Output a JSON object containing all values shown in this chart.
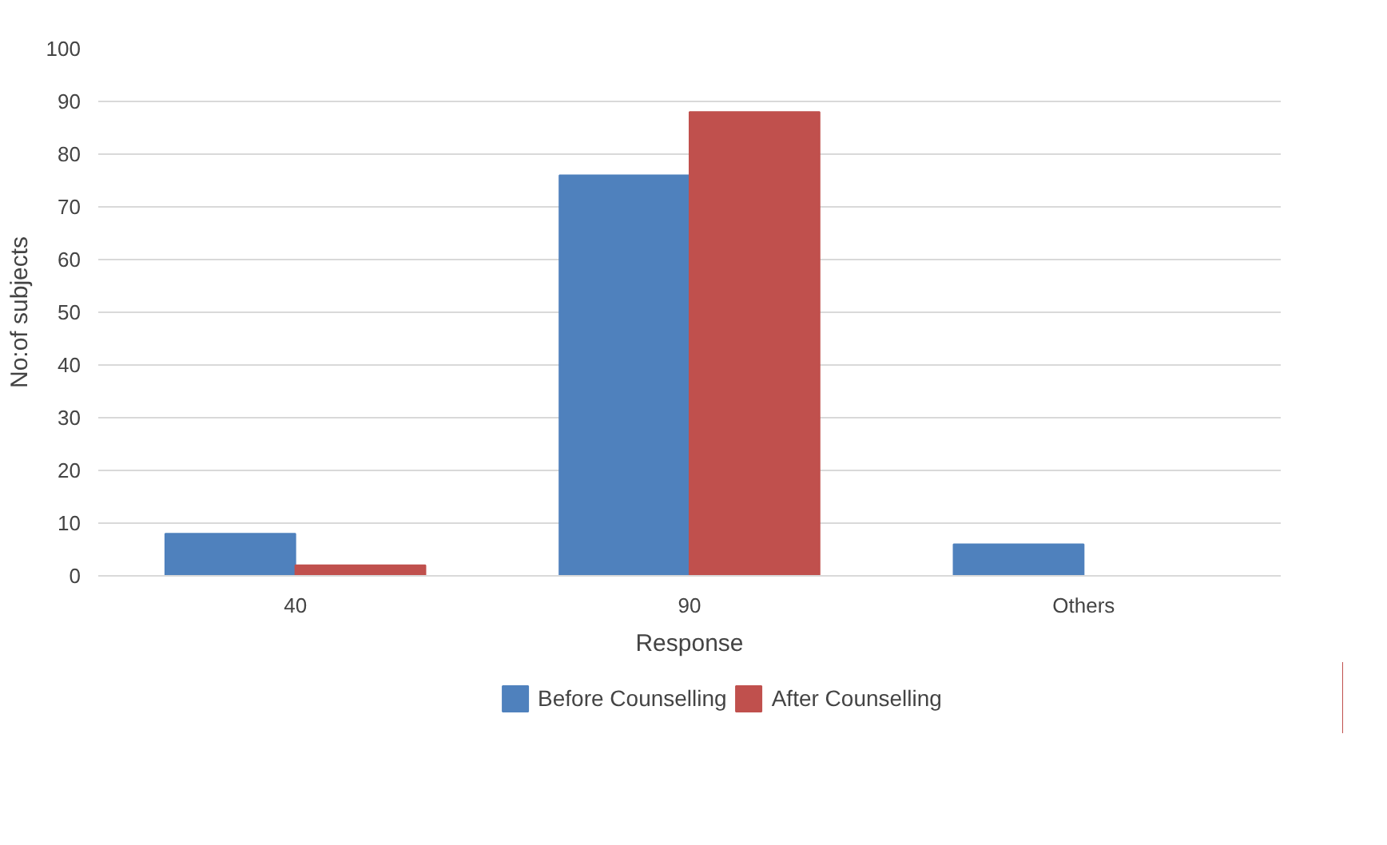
{
  "chart_data": {
    "type": "bar",
    "xlabel": "Response",
    "ylabel": "No:of subjects",
    "categories": [
      "40",
      "90",
      "Others"
    ],
    "series": [
      {
        "name": "Before Counselling",
        "color": "#4f81bd",
        "values": [
          8,
          76,
          6
        ]
      },
      {
        "name": "After Counselling",
        "color": "#c0504d",
        "values": [
          2,
          88,
          0
        ]
      }
    ],
    "ylim": [
      0,
      100
    ],
    "yticks": [
      0,
      10,
      20,
      30,
      40,
      50,
      60,
      70,
      80,
      90,
      100
    ],
    "grid": "y",
    "legend": "bottom"
  }
}
